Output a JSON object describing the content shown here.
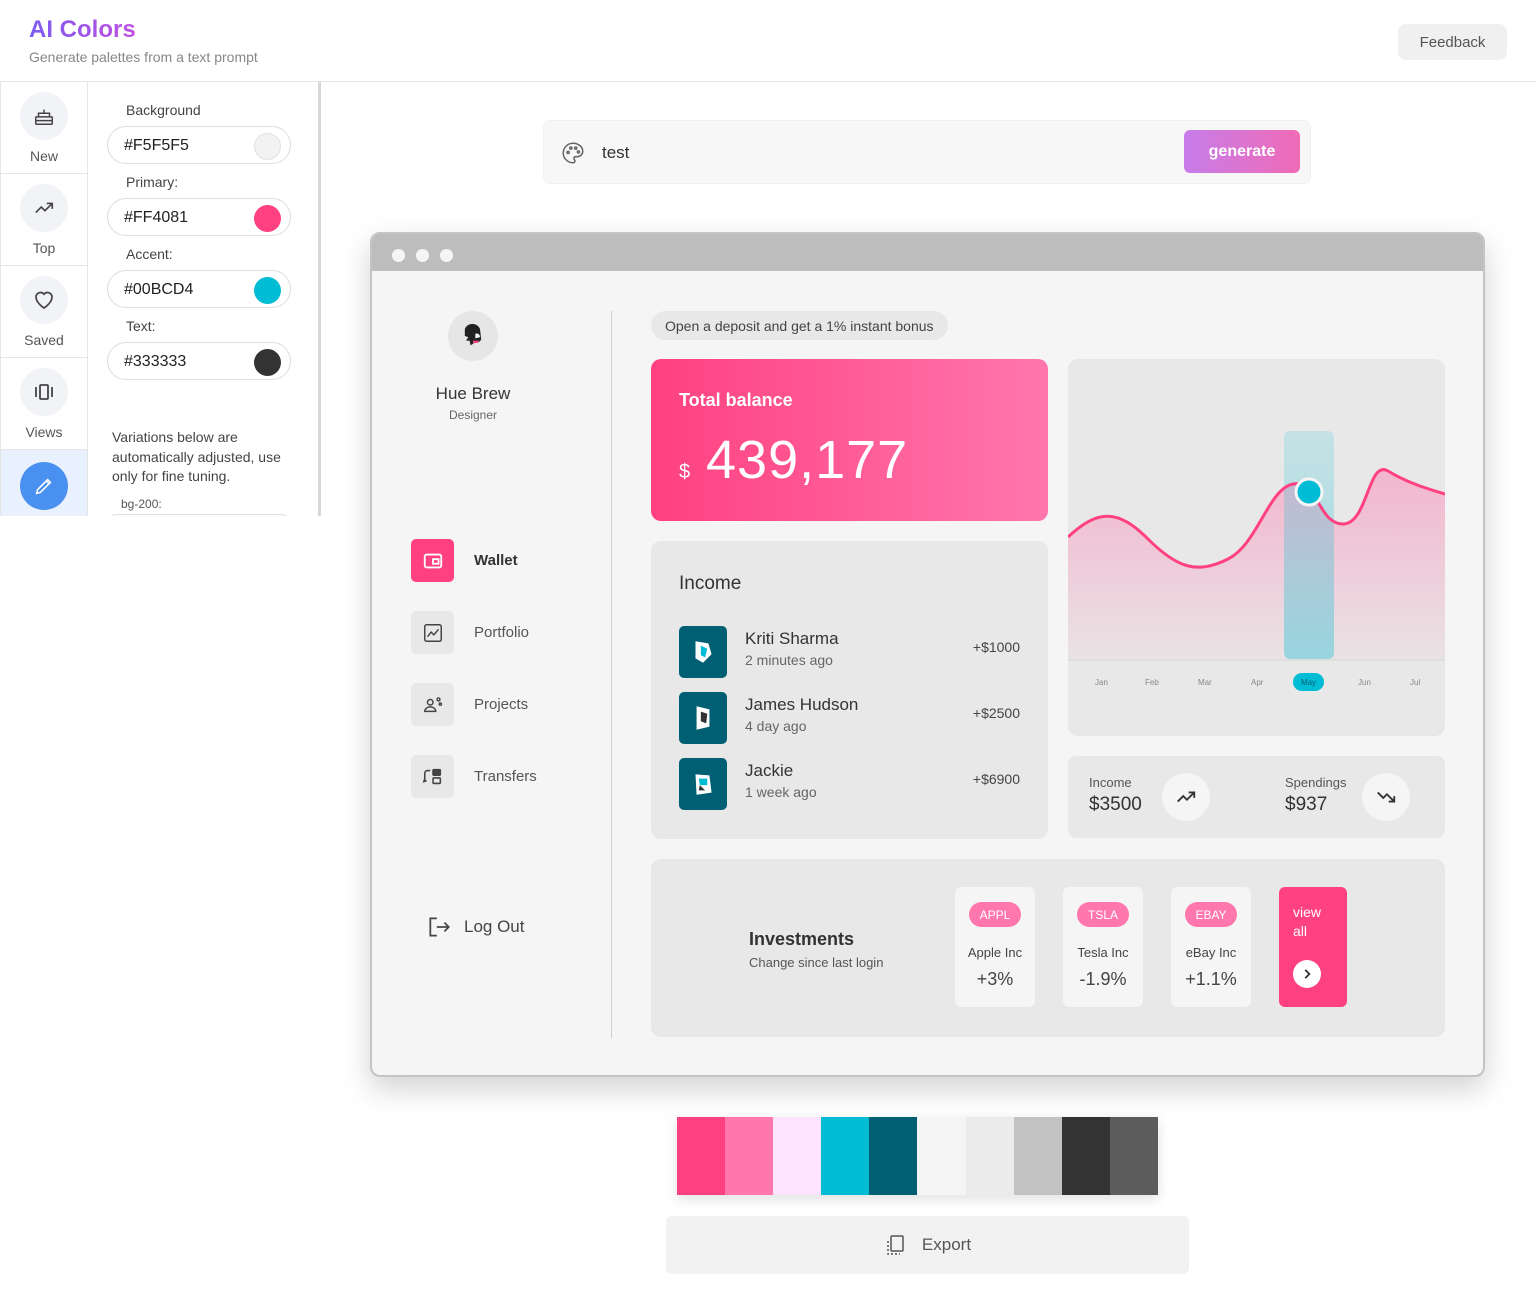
{
  "header": {
    "title": "AI Colors",
    "subtitle": "Generate palettes from a text prompt",
    "feedback_label": "Feedback"
  },
  "leftnav": {
    "items": [
      {
        "label": "New",
        "icon": "cake-icon"
      },
      {
        "label": "Top",
        "icon": "trending-up-icon"
      },
      {
        "label": "Saved",
        "icon": "heart-icon"
      },
      {
        "label": "Views",
        "icon": "carousel-icon"
      },
      {
        "label": "",
        "icon": "pencil-icon"
      }
    ]
  },
  "panel": {
    "background_label": "Background",
    "background_value": "#F5F5F5",
    "primary_label": "Primary:",
    "primary_value": "#FF4081",
    "accent_label": "Accent:",
    "accent_value": "#00BCD4",
    "text_label": "Text:",
    "text_value": "#333333",
    "note": "Variations below are automatically adjusted, use only for fine tuning.",
    "bg200_label": "bg-200:"
  },
  "prompt": {
    "value": "test",
    "generate_label": "generate"
  },
  "mock": {
    "user": {
      "name": "Hue Brew",
      "role": "Designer"
    },
    "menu": [
      {
        "label": "Wallet",
        "icon": "wallet-icon"
      },
      {
        "label": "Portfolio",
        "icon": "chart-icon"
      },
      {
        "label": "Projects",
        "icon": "team-icon"
      },
      {
        "label": "Transfers",
        "icon": "transfer-icon"
      }
    ],
    "logout_label": "Log Out",
    "promo": "Open a deposit and get a 1% instant bonus",
    "balance": {
      "title": "Total balance",
      "currency": "$",
      "amount": "439,177"
    },
    "income": {
      "title": "Income",
      "rows": [
        {
          "name": "Kriti Sharma",
          "time": "2 minutes ago",
          "amount": "+$1000"
        },
        {
          "name": "James Hudson",
          "time": "4 day ago",
          "amount": "+$2500"
        },
        {
          "name": "Jackie",
          "time": "1 week ago",
          "amount": "+$6900"
        }
      ]
    },
    "chart": {
      "months": [
        "Jan",
        "Feb",
        "Mar",
        "Apr",
        "May",
        "Jun",
        "Jul"
      ],
      "selected": "May"
    },
    "stats": {
      "income_label": "Income",
      "income_value": "$3500",
      "spend_label": "Spendings",
      "spend_value": "$937"
    },
    "investments": {
      "title": "Investments",
      "subtitle": "Change since last login",
      "stocks": [
        {
          "ticker": "APPL",
          "company": "Apple Inc",
          "change": "+3%"
        },
        {
          "ticker": "TSLA",
          "company": "Tesla Inc",
          "change": "-1.9%"
        },
        {
          "ticker": "EBAY",
          "company": "eBay Inc",
          "change": "+1.1%"
        }
      ],
      "view_all": "view all"
    }
  },
  "palette": [
    "#FF4081",
    "#FF77AC",
    "#FFE4FF",
    "#00BCD4",
    "#005F73",
    "#F5F5F5",
    "#EBEBEB",
    "#C2C2C2",
    "#333333",
    "#5C5C5C"
  ],
  "export_label": "Export"
}
